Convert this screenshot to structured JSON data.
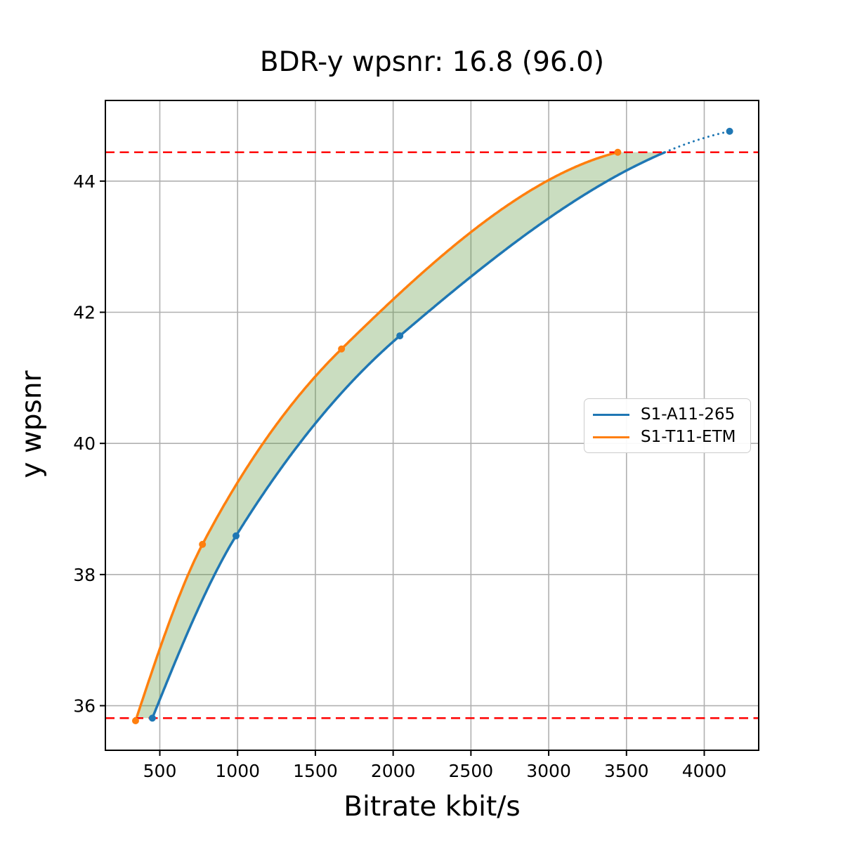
{
  "chart_data": {
    "type": "line",
    "title": "BDR-y wpsnr: 16.8 (96.0)",
    "xlabel": "Bitrate kbit/s",
    "ylabel": "y wpsnr",
    "xlim": [
      150,
      4350
    ],
    "ylim": [
      35.32,
      45.23
    ],
    "xticks": [
      500,
      1000,
      1500,
      2000,
      2500,
      3000,
      3500,
      4000
    ],
    "yticks": [
      36,
      38,
      40,
      42,
      44
    ],
    "grid": true,
    "grid_color": "#b0b0b0",
    "band_color": "rgba(90,150,60,0.32)",
    "legend_position": "center right",
    "series": [
      {
        "name": "S1-A11-265",
        "color": "#1f77b4",
        "marker": "circle",
        "dotted_above_y": 44.44,
        "points": [
          [
            452,
            35.81
          ],
          [
            990,
            38.59
          ],
          [
            2043,
            41.64
          ],
          [
            4163,
            44.76
          ]
        ]
      },
      {
        "name": "S1-T11-ETM",
        "color": "#ff7f0e",
        "marker": "circle",
        "points": [
          [
            344,
            35.77
          ],
          [
            774,
            38.46
          ],
          [
            1668,
            41.44
          ],
          [
            3444,
            44.44
          ]
        ]
      }
    ],
    "hlines": [
      {
        "y": 44.44,
        "color": "#ff0000",
        "style": "dashed"
      },
      {
        "y": 35.81,
        "color": "#ff0000",
        "style": "dashed"
      }
    ]
  }
}
